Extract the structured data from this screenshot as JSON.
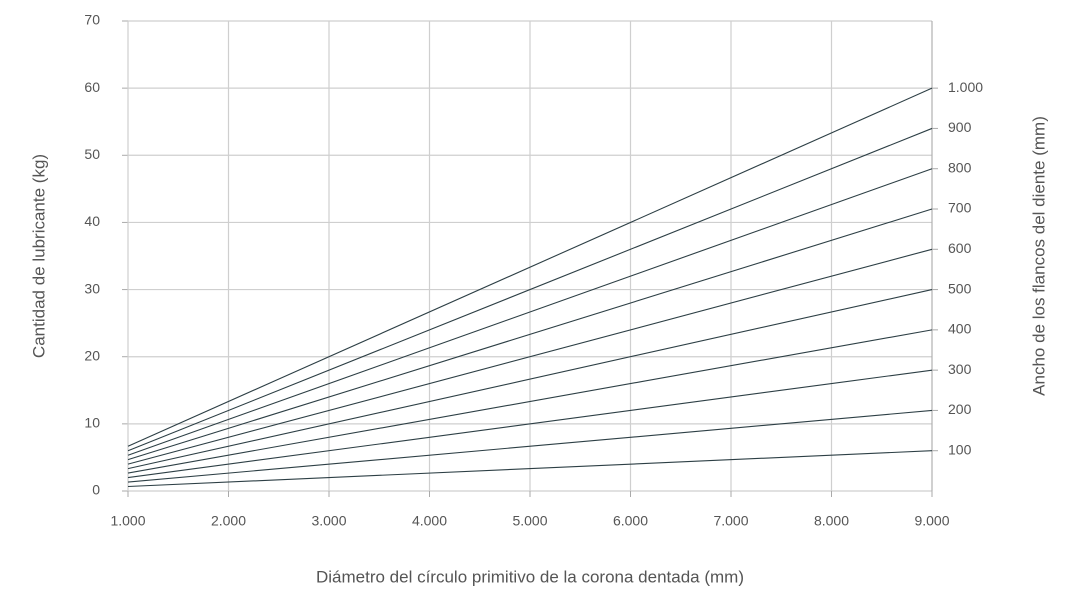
{
  "chart_data": {
    "type": "line",
    "x_label": "Diámetro del círculo primitivo de la corona dentada (mm)",
    "y_label": "Cantidad de lubricante (kg)",
    "y2_label": "Ancho de los flancos del diente (mm)",
    "x": [
      1000,
      9000
    ],
    "xlim": [
      1000,
      9000
    ],
    "xticks": [
      {
        "value": 1000,
        "label": "1.000"
      },
      {
        "value": 2000,
        "label": "2.000"
      },
      {
        "value": 3000,
        "label": "3.000"
      },
      {
        "value": 4000,
        "label": "4.000"
      },
      {
        "value": 5000,
        "label": "5.000"
      },
      {
        "value": 6000,
        "label": "6.000"
      },
      {
        "value": 7000,
        "label": "7.000"
      },
      {
        "value": 8000,
        "label": "8.000"
      },
      {
        "value": 9000,
        "label": "9.000"
      }
    ],
    "ylim": [
      0,
      70
    ],
    "yticks": [
      0,
      10,
      20,
      30,
      40,
      50,
      60,
      70
    ],
    "y2lim": [
      0,
      1166.67
    ],
    "y2ticks": [
      100,
      200,
      300,
      400,
      500,
      600,
      700,
      800,
      900,
      {
        "value": 1000,
        "label": "1.000"
      }
    ],
    "grid": true,
    "color": "#2d3f45",
    "series": [
      {
        "values": [
          0.67,
          6
        ]
      },
      {
        "values": [
          1.33,
          12
        ]
      },
      {
        "values": [
          2,
          18
        ]
      },
      {
        "values": [
          2.67,
          24
        ]
      },
      {
        "values": [
          3.33,
          30
        ]
      },
      {
        "values": [
          4,
          36
        ]
      },
      {
        "values": [
          4.67,
          42
        ]
      },
      {
        "values": [
          5.33,
          48
        ]
      },
      {
        "values": [
          6,
          54
        ]
      },
      {
        "values": [
          6.67,
          60
        ]
      }
    ]
  }
}
